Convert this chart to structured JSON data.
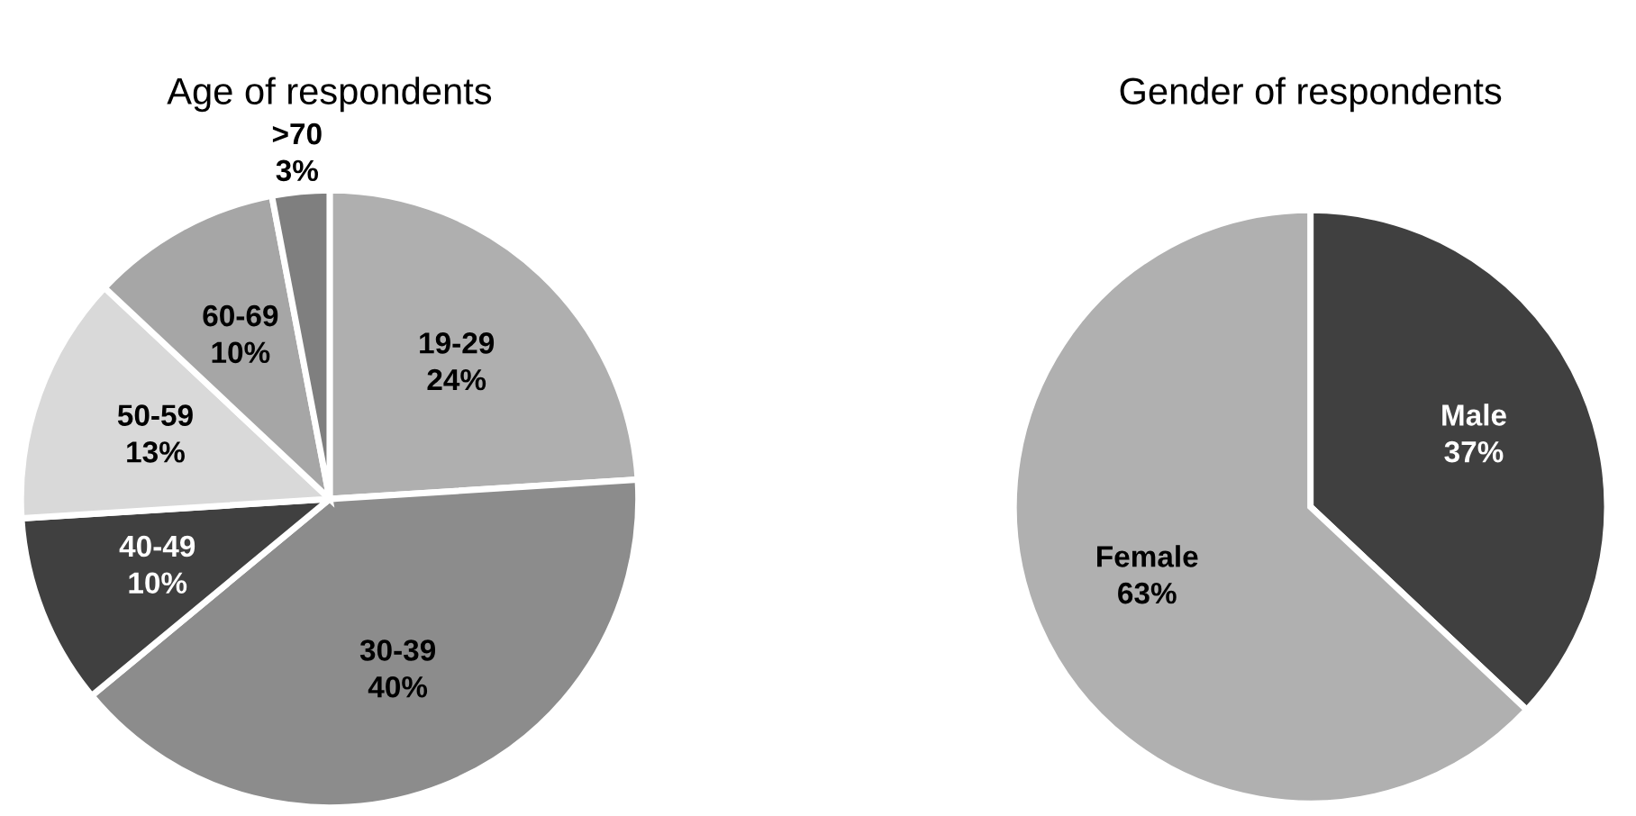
{
  "chart_data": [
    {
      "type": "pie",
      "title": "Age of respondents",
      "categories": [
        "19-29",
        "30-39",
        "40-49",
        "50-59",
        "60-69",
        ">70"
      ],
      "values": [
        24,
        40,
        10,
        13,
        10,
        3
      ],
      "value_labels": [
        "24%",
        "40%",
        "10%",
        "13%",
        "10%",
        "3%"
      ],
      "colors": [
        "#afafaf",
        "#8c8c8c",
        "#404040",
        "#d9d9d9",
        "#a6a6a6",
        "#7f7f7f"
      ]
    },
    {
      "type": "pie",
      "title": "Gender of respondents",
      "categories": [
        "Male",
        "Female"
      ],
      "values": [
        37,
        63
      ],
      "value_labels": [
        "37%",
        "63%"
      ],
      "colors": [
        "#404040",
        "#b0b0b0"
      ]
    }
  ]
}
